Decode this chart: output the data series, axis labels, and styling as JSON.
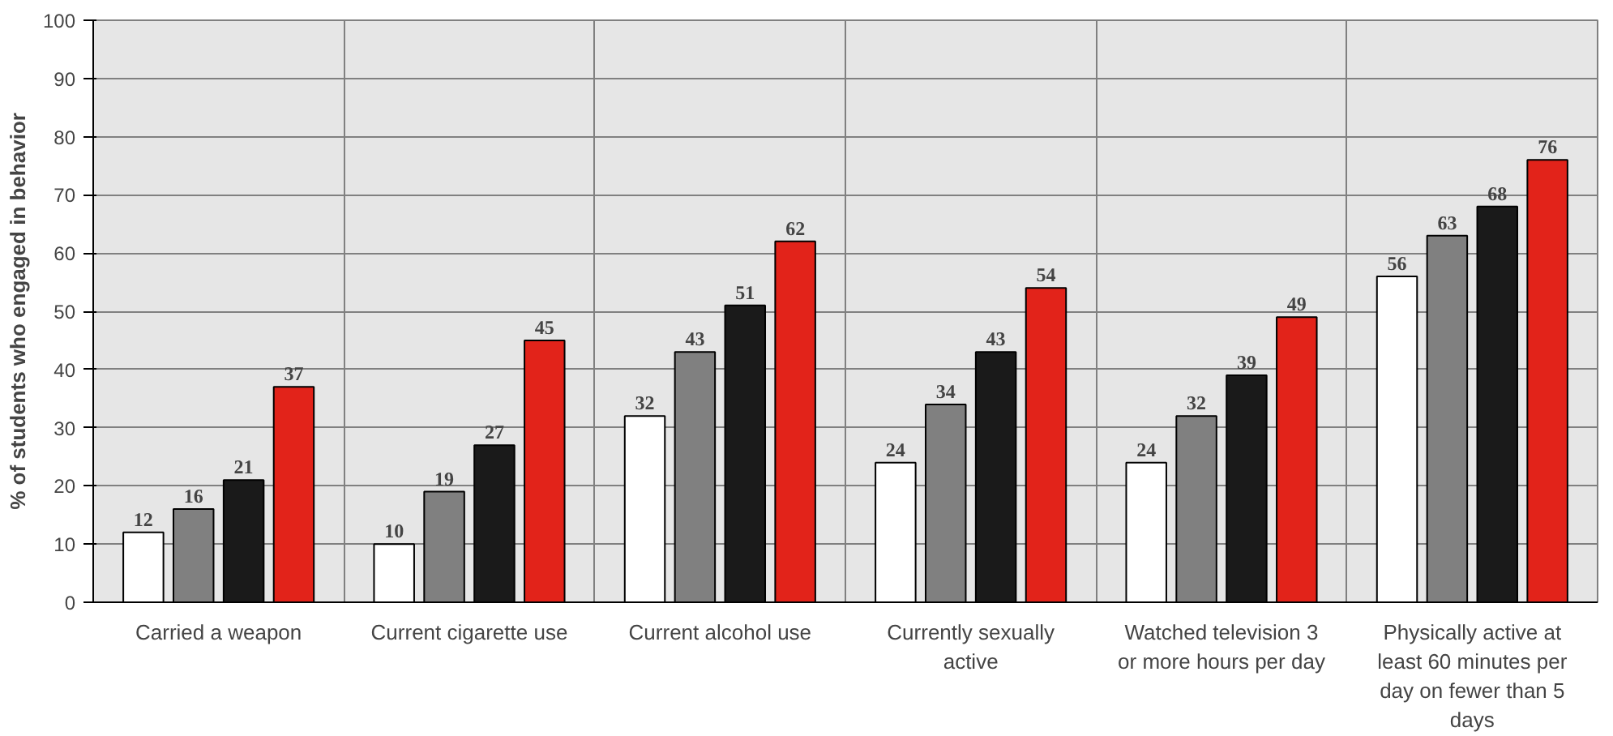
{
  "chart_data": {
    "type": "bar",
    "ylabel": "% of students who engaged in behavior",
    "categories": [
      "Carried a weapon",
      "Current cigarette use",
      "Current alcohol use",
      "Currently sexually active",
      "Watched television 3 or more hours per day",
      "Physically active at least 60 minutes per day on fewer than 5 days"
    ],
    "series": [
      {
        "color": "#ffffff",
        "values": [
          12,
          10,
          32,
          24,
          24,
          56
        ]
      },
      {
        "color": "#808080",
        "values": [
          16,
          19,
          43,
          34,
          32,
          63
        ]
      },
      {
        "color": "#1a1a1a",
        "values": [
          21,
          27,
          51,
          43,
          39,
          68
        ]
      },
      {
        "color": "#e2231a",
        "values": [
          37,
          45,
          62,
          54,
          49,
          76
        ]
      }
    ],
    "ylim": [
      0,
      100
    ],
    "yticks": [
      0,
      10,
      20,
      30,
      40,
      50,
      60,
      70,
      80,
      90,
      100
    ],
    "grid": true,
    "data_labels": true
  }
}
